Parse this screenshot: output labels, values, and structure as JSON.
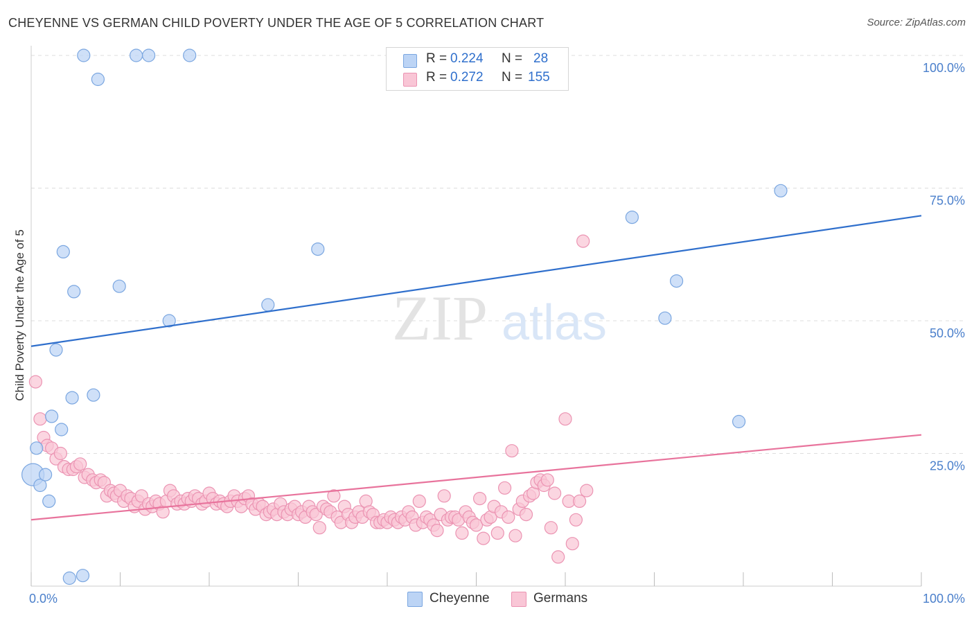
{
  "header": {
    "title": "CHEYENNE VS GERMAN CHILD POVERTY UNDER THE AGE OF 5 CORRELATION CHART",
    "source": "Source: ZipAtlas.com"
  },
  "watermark": {
    "zip": "ZIP",
    "atlas": "atlas"
  },
  "legend": {
    "cheyenne": {
      "r_label": "R =",
      "r_value": "0.224",
      "n_label": "N =",
      "n_value": "28"
    },
    "germans": {
      "r_label": "R =",
      "r_value": "0.272",
      "n_label": "N =",
      "n_value": "155"
    }
  },
  "colors": {
    "cheyenne_fill": "#bcd4f5",
    "cheyenne_stroke": "#7aa6e0",
    "cheyenne_line": "#2f6fcc",
    "germans_fill": "#f9c6d6",
    "germans_stroke": "#eb93b2",
    "germans_line": "#e8739c",
    "axis_label": "#4a7fcb"
  },
  "chart_data": {
    "type": "scatter",
    "title": "CHEYENNE VS GERMAN CHILD POVERTY UNDER THE AGE OF 5 CORRELATION CHART",
    "xlabel": "",
    "ylabel": "Child Poverty Under the Age of 5",
    "xlim": [
      0,
      100
    ],
    "ylim": [
      0,
      100
    ],
    "x_tick_labels": [
      "0.0%",
      "100.0%"
    ],
    "y_tick_labels": [
      "25.0%",
      "50.0%",
      "75.0%",
      "100.0%"
    ],
    "y_ticks": [
      25,
      50,
      75,
      100
    ],
    "grid": true,
    "legend_position": "top-center and bottom",
    "series": [
      {
        "name": "Cheyenne",
        "r": 0.224,
        "n": 28,
        "trend": {
          "x": [
            0,
            100
          ],
          "y": [
            45.2,
            69.8
          ]
        },
        "points": [
          {
            "x": 0.2,
            "y": 21
          },
          {
            "x": 0.6,
            "y": 26
          },
          {
            "x": 1.0,
            "y": 19
          },
          {
            "x": 1.6,
            "y": 21
          },
          {
            "x": 2.0,
            "y": 16
          },
          {
            "x": 2.3,
            "y": 32
          },
          {
            "x": 2.8,
            "y": 44.5
          },
          {
            "x": 3.4,
            "y": 29.5
          },
          {
            "x": 3.6,
            "y": 63
          },
          {
            "x": 4.3,
            "y": 1.5
          },
          {
            "x": 4.6,
            "y": 35.5
          },
          {
            "x": 4.8,
            "y": 55.5
          },
          {
            "x": 5.9,
            "y": 100
          },
          {
            "x": 5.8,
            "y": 2
          },
          {
            "x": 7.0,
            "y": 36
          },
          {
            "x": 7.5,
            "y": 95.5
          },
          {
            "x": 9.9,
            "y": 56.5
          },
          {
            "x": 11.8,
            "y": 100
          },
          {
            "x": 13.2,
            "y": 100
          },
          {
            "x": 15.5,
            "y": 50
          },
          {
            "x": 17.8,
            "y": 100
          },
          {
            "x": 26.6,
            "y": 53
          },
          {
            "x": 32.2,
            "y": 63.5
          },
          {
            "x": 67.5,
            "y": 69.5
          },
          {
            "x": 71.2,
            "y": 50.5
          },
          {
            "x": 72.5,
            "y": 57.5
          },
          {
            "x": 79.5,
            "y": 31
          },
          {
            "x": 84.2,
            "y": 74.5
          }
        ]
      },
      {
        "name": "Germans",
        "r": 0.272,
        "n": 155,
        "trend": {
          "x": [
            0,
            100
          ],
          "y": [
            12.5,
            28.5
          ]
        },
        "points": [
          {
            "x": 0.5,
            "y": 38.5
          },
          {
            "x": 1.0,
            "y": 31.5
          },
          {
            "x": 1.4,
            "y": 28
          },
          {
            "x": 1.8,
            "y": 26.5
          },
          {
            "x": 2.3,
            "y": 26
          },
          {
            "x": 2.8,
            "y": 24
          },
          {
            "x": 3.3,
            "y": 25
          },
          {
            "x": 3.7,
            "y": 22.5
          },
          {
            "x": 4.2,
            "y": 22
          },
          {
            "x": 4.7,
            "y": 22
          },
          {
            "x": 5.1,
            "y": 22.5
          },
          {
            "x": 5.5,
            "y": 23
          },
          {
            "x": 6.0,
            "y": 20.5
          },
          {
            "x": 6.4,
            "y": 21
          },
          {
            "x": 6.9,
            "y": 20
          },
          {
            "x": 7.3,
            "y": 19.5
          },
          {
            "x": 7.8,
            "y": 20
          },
          {
            "x": 8.2,
            "y": 19.5
          },
          {
            "x": 8.5,
            "y": 17
          },
          {
            "x": 8.9,
            "y": 18
          },
          {
            "x": 9.3,
            "y": 17.5
          },
          {
            "x": 9.6,
            "y": 17
          },
          {
            "x": 10.0,
            "y": 18
          },
          {
            "x": 10.4,
            "y": 16
          },
          {
            "x": 10.8,
            "y": 17
          },
          {
            "x": 11.2,
            "y": 16.5
          },
          {
            "x": 11.6,
            "y": 15
          },
          {
            "x": 12.0,
            "y": 16
          },
          {
            "x": 12.4,
            "y": 17
          },
          {
            "x": 12.8,
            "y": 14.5
          },
          {
            "x": 13.2,
            "y": 15.5
          },
          {
            "x": 13.6,
            "y": 15
          },
          {
            "x": 14.0,
            "y": 16
          },
          {
            "x": 14.4,
            "y": 15.5
          },
          {
            "x": 14.8,
            "y": 14
          },
          {
            "x": 15.2,
            "y": 16
          },
          {
            "x": 15.6,
            "y": 18
          },
          {
            "x": 16.0,
            "y": 17
          },
          {
            "x": 16.4,
            "y": 15.5
          },
          {
            "x": 16.8,
            "y": 16
          },
          {
            "x": 17.2,
            "y": 15.5
          },
          {
            "x": 17.6,
            "y": 16.5
          },
          {
            "x": 18.0,
            "y": 16
          },
          {
            "x": 18.4,
            "y": 17
          },
          {
            "x": 18.8,
            "y": 16.5
          },
          {
            "x": 19.2,
            "y": 15.5
          },
          {
            "x": 19.6,
            "y": 16
          },
          {
            "x": 20.0,
            "y": 17.5
          },
          {
            "x": 20.4,
            "y": 16.5
          },
          {
            "x": 20.8,
            "y": 15.5
          },
          {
            "x": 21.2,
            "y": 16
          },
          {
            "x": 21.6,
            "y": 15.5
          },
          {
            "x": 22.0,
            "y": 15
          },
          {
            "x": 22.4,
            "y": 16
          },
          {
            "x": 22.8,
            "y": 17
          },
          {
            "x": 23.2,
            "y": 16
          },
          {
            "x": 23.6,
            "y": 15
          },
          {
            "x": 24.0,
            "y": 16.5
          },
          {
            "x": 24.4,
            "y": 17
          },
          {
            "x": 24.8,
            "y": 15.5
          },
          {
            "x": 25.2,
            "y": 14.5
          },
          {
            "x": 25.6,
            "y": 15.5
          },
          {
            "x": 26.0,
            "y": 15
          },
          {
            "x": 26.4,
            "y": 13.5
          },
          {
            "x": 26.8,
            "y": 14
          },
          {
            "x": 27.2,
            "y": 14.5
          },
          {
            "x": 27.6,
            "y": 13.5
          },
          {
            "x": 28.0,
            "y": 15.5
          },
          {
            "x": 28.4,
            "y": 14
          },
          {
            "x": 28.8,
            "y": 13.5
          },
          {
            "x": 29.2,
            "y": 14.5
          },
          {
            "x": 29.6,
            "y": 15
          },
          {
            "x": 30.0,
            "y": 13.5
          },
          {
            "x": 30.4,
            "y": 14
          },
          {
            "x": 30.8,
            "y": 13
          },
          {
            "x": 31.2,
            "y": 15
          },
          {
            "x": 31.6,
            "y": 14
          },
          {
            "x": 32.0,
            "y": 13.5
          },
          {
            "x": 32.4,
            "y": 11
          },
          {
            "x": 32.8,
            "y": 15
          },
          {
            "x": 33.2,
            "y": 14.5
          },
          {
            "x": 33.6,
            "y": 14
          },
          {
            "x": 34.0,
            "y": 17
          },
          {
            "x": 34.4,
            "y": 13
          },
          {
            "x": 34.8,
            "y": 12
          },
          {
            "x": 35.2,
            "y": 15
          },
          {
            "x": 35.6,
            "y": 13.5
          },
          {
            "x": 36.0,
            "y": 12
          },
          {
            "x": 36.4,
            "y": 13
          },
          {
            "x": 36.8,
            "y": 14
          },
          {
            "x": 37.2,
            "y": 13
          },
          {
            "x": 37.6,
            "y": 16
          },
          {
            "x": 38.0,
            "y": 14
          },
          {
            "x": 38.4,
            "y": 13.5
          },
          {
            "x": 38.8,
            "y": 12
          },
          {
            "x": 39.2,
            "y": 12
          },
          {
            "x": 39.6,
            "y": 12.5
          },
          {
            "x": 40.0,
            "y": 12
          },
          {
            "x": 40.4,
            "y": 13
          },
          {
            "x": 40.8,
            "y": 12.5
          },
          {
            "x": 41.2,
            "y": 12
          },
          {
            "x": 41.6,
            "y": 13
          },
          {
            "x": 42.0,
            "y": 12.5
          },
          {
            "x": 42.4,
            "y": 14
          },
          {
            "x": 42.8,
            "y": 13
          },
          {
            "x": 43.2,
            "y": 11.5
          },
          {
            "x": 43.6,
            "y": 16
          },
          {
            "x": 44.0,
            "y": 12
          },
          {
            "x": 44.4,
            "y": 13
          },
          {
            "x": 44.8,
            "y": 12.5
          },
          {
            "x": 45.2,
            "y": 11.5
          },
          {
            "x": 45.6,
            "y": 10.5
          },
          {
            "x": 46.0,
            "y": 13.5
          },
          {
            "x": 46.4,
            "y": 17
          },
          {
            "x": 46.8,
            "y": 12.5
          },
          {
            "x": 47.2,
            "y": 13
          },
          {
            "x": 47.6,
            "y": 13
          },
          {
            "x": 48.0,
            "y": 12.5
          },
          {
            "x": 48.4,
            "y": 10
          },
          {
            "x": 48.8,
            "y": 14
          },
          {
            "x": 49.2,
            "y": 13
          },
          {
            "x": 49.6,
            "y": 12
          },
          {
            "x": 50.0,
            "y": 11.5
          },
          {
            "x": 50.4,
            "y": 16.5
          },
          {
            "x": 50.8,
            "y": 9
          },
          {
            "x": 51.2,
            "y": 12.5
          },
          {
            "x": 51.6,
            "y": 13
          },
          {
            "x": 52.0,
            "y": 15
          },
          {
            "x": 52.4,
            "y": 10
          },
          {
            "x": 52.8,
            "y": 14
          },
          {
            "x": 53.2,
            "y": 18.5
          },
          {
            "x": 53.6,
            "y": 13
          },
          {
            "x": 54.0,
            "y": 25.5
          },
          {
            "x": 54.4,
            "y": 9.5
          },
          {
            "x": 54.8,
            "y": 14.5
          },
          {
            "x": 55.2,
            "y": 16
          },
          {
            "x": 55.6,
            "y": 13.5
          },
          {
            "x": 56.0,
            "y": 17
          },
          {
            "x": 56.4,
            "y": 17.5
          },
          {
            "x": 56.8,
            "y": 19.5
          },
          {
            "x": 57.2,
            "y": 20
          },
          {
            "x": 57.6,
            "y": 19
          },
          {
            "x": 58.0,
            "y": 20
          },
          {
            "x": 58.4,
            "y": 11
          },
          {
            "x": 58.8,
            "y": 17.5
          },
          {
            "x": 59.2,
            "y": 5.5
          },
          {
            "x": 60.0,
            "y": 31.5
          },
          {
            "x": 60.4,
            "y": 16
          },
          {
            "x": 60.8,
            "y": 8
          },
          {
            "x": 61.2,
            "y": 12.5
          },
          {
            "x": 61.6,
            "y": 16
          },
          {
            "x": 62.0,
            "y": 65
          },
          {
            "x": 62.4,
            "y": 18
          }
        ]
      }
    ]
  }
}
